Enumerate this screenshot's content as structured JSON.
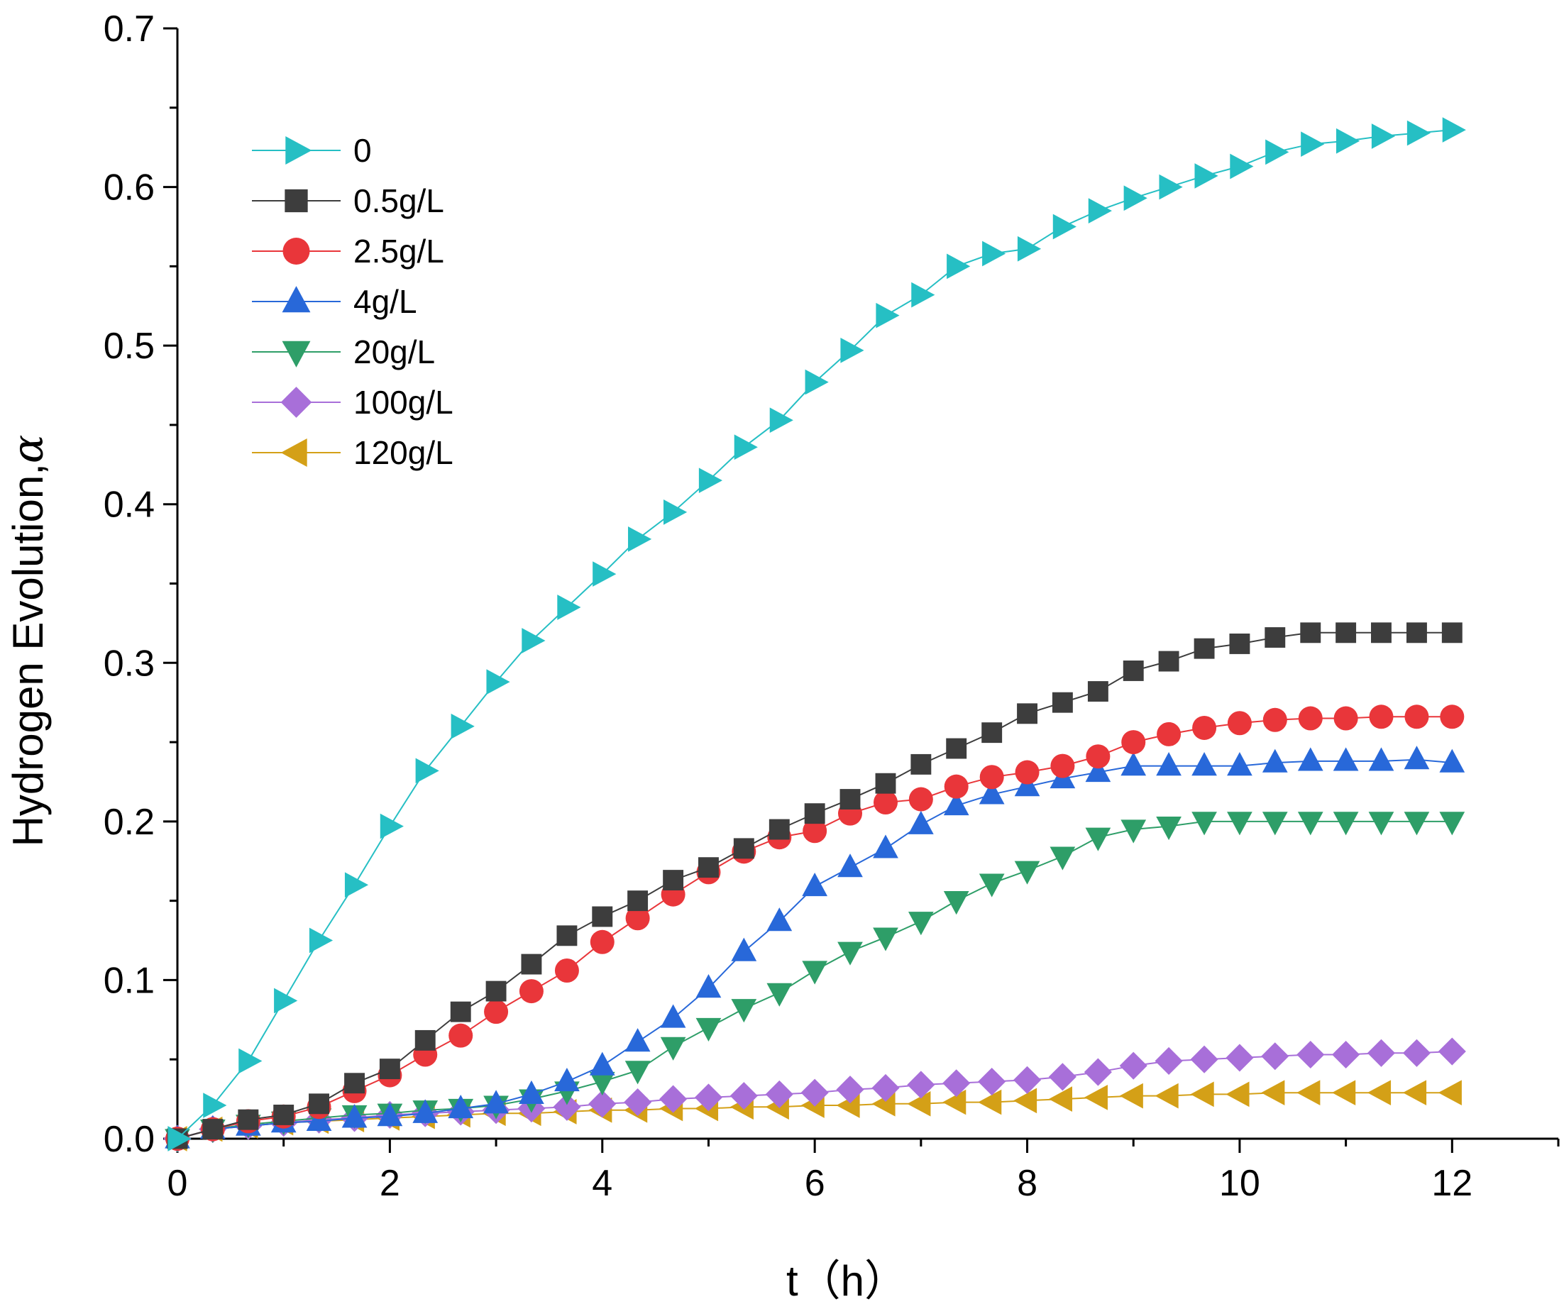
{
  "chart_data": {
    "type": "line",
    "title": "",
    "xlabel": "t（h）",
    "ylabel": "Hydrogen Evolution,",
    "ylabel_symbol": "α",
    "xlim": [
      0,
      13
    ],
    "ylim": [
      0,
      0.7
    ],
    "x_ticks": [
      "0",
      "2",
      "4",
      "6",
      "8",
      "10",
      "12"
    ],
    "y_ticks": [
      "0.0",
      "0.1",
      "0.2",
      "0.3",
      "0.4",
      "0.5",
      "0.6",
      "0.7"
    ],
    "legend_position": "top-left",
    "x": [
      0,
      0.333,
      0.667,
      1,
      1.333,
      1.667,
      2,
      2.333,
      2.667,
      3,
      3.333,
      3.667,
      4,
      4.333,
      4.667,
      5,
      5.333,
      5.667,
      6,
      6.333,
      6.667,
      7,
      7.333,
      7.667,
      8,
      8.333,
      8.667,
      9,
      9.333,
      9.667,
      10,
      10.333,
      10.667,
      11,
      11.333,
      11.667,
      12
    ],
    "series": [
      {
        "name": "0",
        "color": "#26BFC4",
        "marker": "triangle-right",
        "values": [
          0,
          0.021,
          0.049,
          0.087,
          0.125,
          0.16,
          0.197,
          0.232,
          0.26,
          0.288,
          0.314,
          0.335,
          0.356,
          0.378,
          0.395,
          0.415,
          0.436,
          0.453,
          0.477,
          0.497,
          0.519,
          0.532,
          0.55,
          0.558,
          0.561,
          0.575,
          0.585,
          0.593,
          0.6,
          0.607,
          0.613,
          0.622,
          0.627,
          0.629,
          0.632,
          0.634,
          0.636
        ]
      },
      {
        "name": "0.5g/L",
        "color": "#3D3D3D",
        "marker": "square",
        "values": [
          0,
          0.006,
          0.012,
          0.015,
          0.022,
          0.035,
          0.044,
          0.062,
          0.08,
          0.093,
          0.11,
          0.128,
          0.14,
          0.15,
          0.163,
          0.171,
          0.183,
          0.195,
          0.205,
          0.214,
          0.224,
          0.236,
          0.246,
          0.256,
          0.268,
          0.275,
          0.282,
          0.295,
          0.301,
          0.309,
          0.312,
          0.316,
          0.319,
          0.319,
          0.319,
          0.319,
          0.319
        ]
      },
      {
        "name": "2.5g/L",
        "color": "#E9363A",
        "marker": "circle",
        "values": [
          0,
          0.006,
          0.011,
          0.014,
          0.02,
          0.03,
          0.04,
          0.053,
          0.065,
          0.08,
          0.093,
          0.106,
          0.124,
          0.139,
          0.154,
          0.168,
          0.181,
          0.19,
          0.194,
          0.205,
          0.212,
          0.214,
          0.222,
          0.228,
          0.231,
          0.235,
          0.241,
          0.25,
          0.255,
          0.259,
          0.262,
          0.264,
          0.265,
          0.265,
          0.266,
          0.266,
          0.266
        ]
      },
      {
        "name": "4g/L",
        "color": "#2868D9",
        "marker": "triangle-up",
        "values": [
          0,
          0.006,
          0.008,
          0.01,
          0.011,
          0.013,
          0.014,
          0.016,
          0.019,
          0.022,
          0.028,
          0.036,
          0.046,
          0.061,
          0.076,
          0.095,
          0.118,
          0.137,
          0.159,
          0.171,
          0.183,
          0.198,
          0.21,
          0.217,
          0.222,
          0.227,
          0.231,
          0.235,
          0.235,
          0.235,
          0.235,
          0.237,
          0.238,
          0.238,
          0.238,
          0.239,
          0.237
        ]
      },
      {
        "name": "20g/L",
        "color": "#2E9E68",
        "marker": "triangle-down",
        "values": [
          0,
          0.006,
          0.009,
          0.011,
          0.013,
          0.015,
          0.016,
          0.018,
          0.019,
          0.021,
          0.025,
          0.03,
          0.036,
          0.043,
          0.058,
          0.07,
          0.082,
          0.092,
          0.106,
          0.118,
          0.127,
          0.137,
          0.15,
          0.161,
          0.169,
          0.178,
          0.19,
          0.195,
          0.197,
          0.2,
          0.2,
          0.2,
          0.2,
          0.2,
          0.2,
          0.2,
          0.2
        ]
      },
      {
        "name": "100g/L",
        "color": "#A86FD9",
        "marker": "diamond",
        "values": [
          0,
          0.006,
          0.008,
          0.01,
          0.012,
          0.013,
          0.015,
          0.016,
          0.017,
          0.018,
          0.019,
          0.02,
          0.022,
          0.023,
          0.025,
          0.026,
          0.027,
          0.028,
          0.029,
          0.031,
          0.032,
          0.034,
          0.035,
          0.036,
          0.037,
          0.039,
          0.042,
          0.046,
          0.049,
          0.05,
          0.051,
          0.052,
          0.053,
          0.053,
          0.054,
          0.054,
          0.055
        ]
      },
      {
        "name": "120g/L",
        "color": "#D4A017",
        "marker": "triangle-left",
        "values": [
          0,
          0.006,
          0.008,
          0.01,
          0.011,
          0.012,
          0.013,
          0.014,
          0.015,
          0.016,
          0.016,
          0.017,
          0.018,
          0.018,
          0.019,
          0.019,
          0.02,
          0.02,
          0.021,
          0.021,
          0.022,
          0.022,
          0.023,
          0.023,
          0.024,
          0.025,
          0.026,
          0.027,
          0.027,
          0.028,
          0.028,
          0.029,
          0.029,
          0.029,
          0.029,
          0.029,
          0.029
        ]
      }
    ]
  }
}
